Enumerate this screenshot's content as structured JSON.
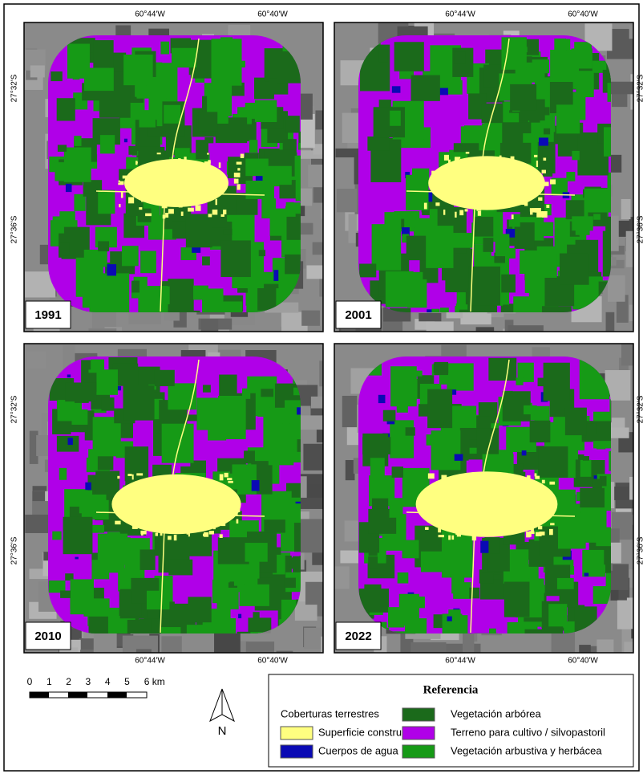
{
  "panels": [
    {
      "year": "1991"
    },
    {
      "year": "2001"
    },
    {
      "year": "2010"
    },
    {
      "year": "2022"
    }
  ],
  "coordinates": {
    "lon": [
      "60°44'W",
      "60°40'W"
    ],
    "lat": [
      "27°32'S",
      "27°36'S"
    ]
  },
  "scale_bar": {
    "labels": [
      "0",
      "1",
      "2",
      "3",
      "4",
      "5",
      "6 km"
    ]
  },
  "north_arrow": "N",
  "legend": {
    "title": "Referencia",
    "subtitle": "Coberturas terrestres",
    "items": [
      {
        "label": "Superficie construida",
        "color": "#ffff80"
      },
      {
        "label": "Cuerpos de agua",
        "color": "#0a0ab4"
      },
      {
        "label": "Vegetación arbórea",
        "color": "#1b6a1b"
      },
      {
        "label": "Terreno para cultivo / silvopastoril",
        "color": "#b000e8"
      },
      {
        "label": "Vegetación arbustiva y herbácea",
        "color": "#169a16"
      }
    ]
  }
}
